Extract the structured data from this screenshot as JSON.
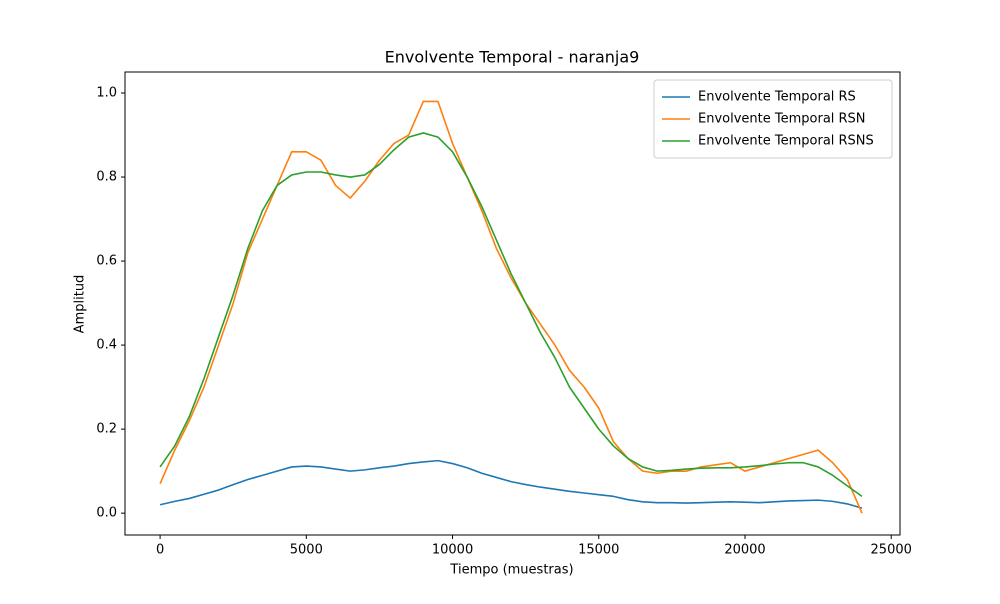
{
  "chart_data": {
    "type": "line",
    "title": "Envolvente Temporal - naranja9",
    "x_label": "Tiempo (muestras)",
    "y_label": "Amplitud",
    "x": [
      0,
      500,
      1000,
      1500,
      2000,
      2500,
      3000,
      3500,
      4000,
      4500,
      5000,
      5500,
      6000,
      6500,
      7000,
      7500,
      8000,
      8500,
      9000,
      9500,
      10000,
      10500,
      11000,
      11500,
      12000,
      12500,
      13000,
      13500,
      14000,
      14500,
      15000,
      15500,
      16000,
      16500,
      17000,
      17500,
      18000,
      18500,
      19000,
      19500,
      20000,
      20500,
      21000,
      21500,
      22000,
      22500,
      23000,
      23500,
      24000
    ],
    "series": [
      {
        "name": "Envolvente Temporal RS",
        "color": "#1f77b4",
        "values": [
          0.02,
          0.028,
          0.035,
          0.045,
          0.055,
          0.068,
          0.08,
          0.09,
          0.1,
          0.11,
          0.112,
          0.11,
          0.105,
          0.1,
          0.103,
          0.108,
          0.112,
          0.118,
          0.122,
          0.125,
          0.118,
          0.108,
          0.095,
          0.085,
          0.075,
          0.068,
          0.062,
          0.057,
          0.052,
          0.048,
          0.044,
          0.04,
          0.032,
          0.027,
          0.025,
          0.025,
          0.024,
          0.025,
          0.026,
          0.027,
          0.026,
          0.025,
          0.027,
          0.029,
          0.03,
          0.031,
          0.028,
          0.022,
          0.012
        ]
      },
      {
        "name": "Envolvente Temporal RSN",
        "color": "#ff7f0e",
        "values": [
          0.07,
          0.15,
          0.22,
          0.3,
          0.4,
          0.5,
          0.62,
          0.7,
          0.78,
          0.86,
          0.86,
          0.84,
          0.78,
          0.75,
          0.79,
          0.84,
          0.88,
          0.9,
          0.98,
          0.98,
          0.88,
          0.8,
          0.72,
          0.63,
          0.56,
          0.5,
          0.45,
          0.4,
          0.34,
          0.3,
          0.25,
          0.17,
          0.13,
          0.1,
          0.095,
          0.1,
          0.1,
          0.11,
          0.115,
          0.12,
          0.1,
          0.11,
          0.12,
          0.13,
          0.14,
          0.15,
          0.12,
          0.08,
          0.0
        ]
      },
      {
        "name": "Envolvente Temporal RSNS",
        "color": "#2ca02c",
        "values": [
          0.11,
          0.16,
          0.23,
          0.32,
          0.42,
          0.52,
          0.63,
          0.72,
          0.78,
          0.805,
          0.812,
          0.812,
          0.805,
          0.8,
          0.805,
          0.83,
          0.865,
          0.895,
          0.905,
          0.895,
          0.86,
          0.8,
          0.73,
          0.65,
          0.57,
          0.5,
          0.43,
          0.37,
          0.3,
          0.25,
          0.2,
          0.16,
          0.13,
          0.11,
          0.1,
          0.102,
          0.105,
          0.107,
          0.108,
          0.108,
          0.11,
          0.113,
          0.117,
          0.12,
          0.12,
          0.11,
          0.09,
          0.065,
          0.04
        ]
      }
    ],
    "xlim": [
      -1200,
      25300
    ],
    "ylim": [
      -0.052,
      1.05
    ],
    "xticks": [
      0,
      5000,
      10000,
      15000,
      20000,
      25000
    ],
    "yticks": [
      {
        "value": 0,
        "label": "0.0"
      },
      0.2,
      0.4,
      0.6,
      0.8,
      {
        "value": 1,
        "label": "1.0"
      }
    ],
    "legend": "upper-right"
  }
}
